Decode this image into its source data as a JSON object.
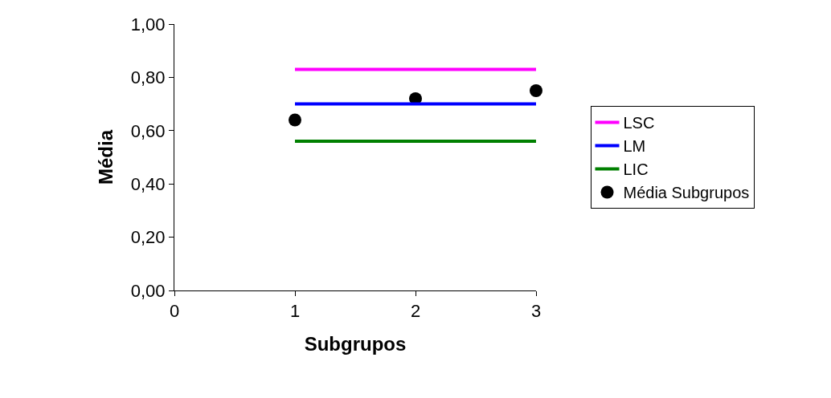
{
  "chart_data": {
    "type": "line",
    "xlabel": "Subgrupos",
    "ylabel": "Média",
    "x": [
      1,
      2,
      3
    ],
    "series": [
      {
        "name": "LSC",
        "color": "#ff00ff",
        "values": [
          0.83,
          0.83,
          0.83
        ]
      },
      {
        "name": "LM",
        "color": "#0000ff",
        "values": [
          0.7,
          0.7,
          0.7
        ]
      },
      {
        "name": "LIC",
        "color": "#008000",
        "values": [
          0.56,
          0.56,
          0.56
        ]
      },
      {
        "name": "Média Subgrupos",
        "color": "#000000",
        "type": "scatter",
        "marker": "circle",
        "values": [
          0.64,
          0.72,
          0.75
        ]
      }
    ],
    "xlim": [
      0,
      3
    ],
    "xticks": [
      0,
      1,
      2,
      3
    ],
    "ylim": [
      0,
      1
    ],
    "yticks": [
      {
        "value": 0,
        "label": "0,00"
      },
      {
        "value": 0.2,
        "label": "0,20"
      },
      {
        "value": 0.4,
        "label": "0,40"
      },
      {
        "value": 0.6,
        "label": "0,60"
      },
      {
        "value": 0.8,
        "label": "0,80"
      },
      {
        "value": 1,
        "label": "1,00"
      }
    ],
    "grid": false,
    "legend": "right"
  }
}
